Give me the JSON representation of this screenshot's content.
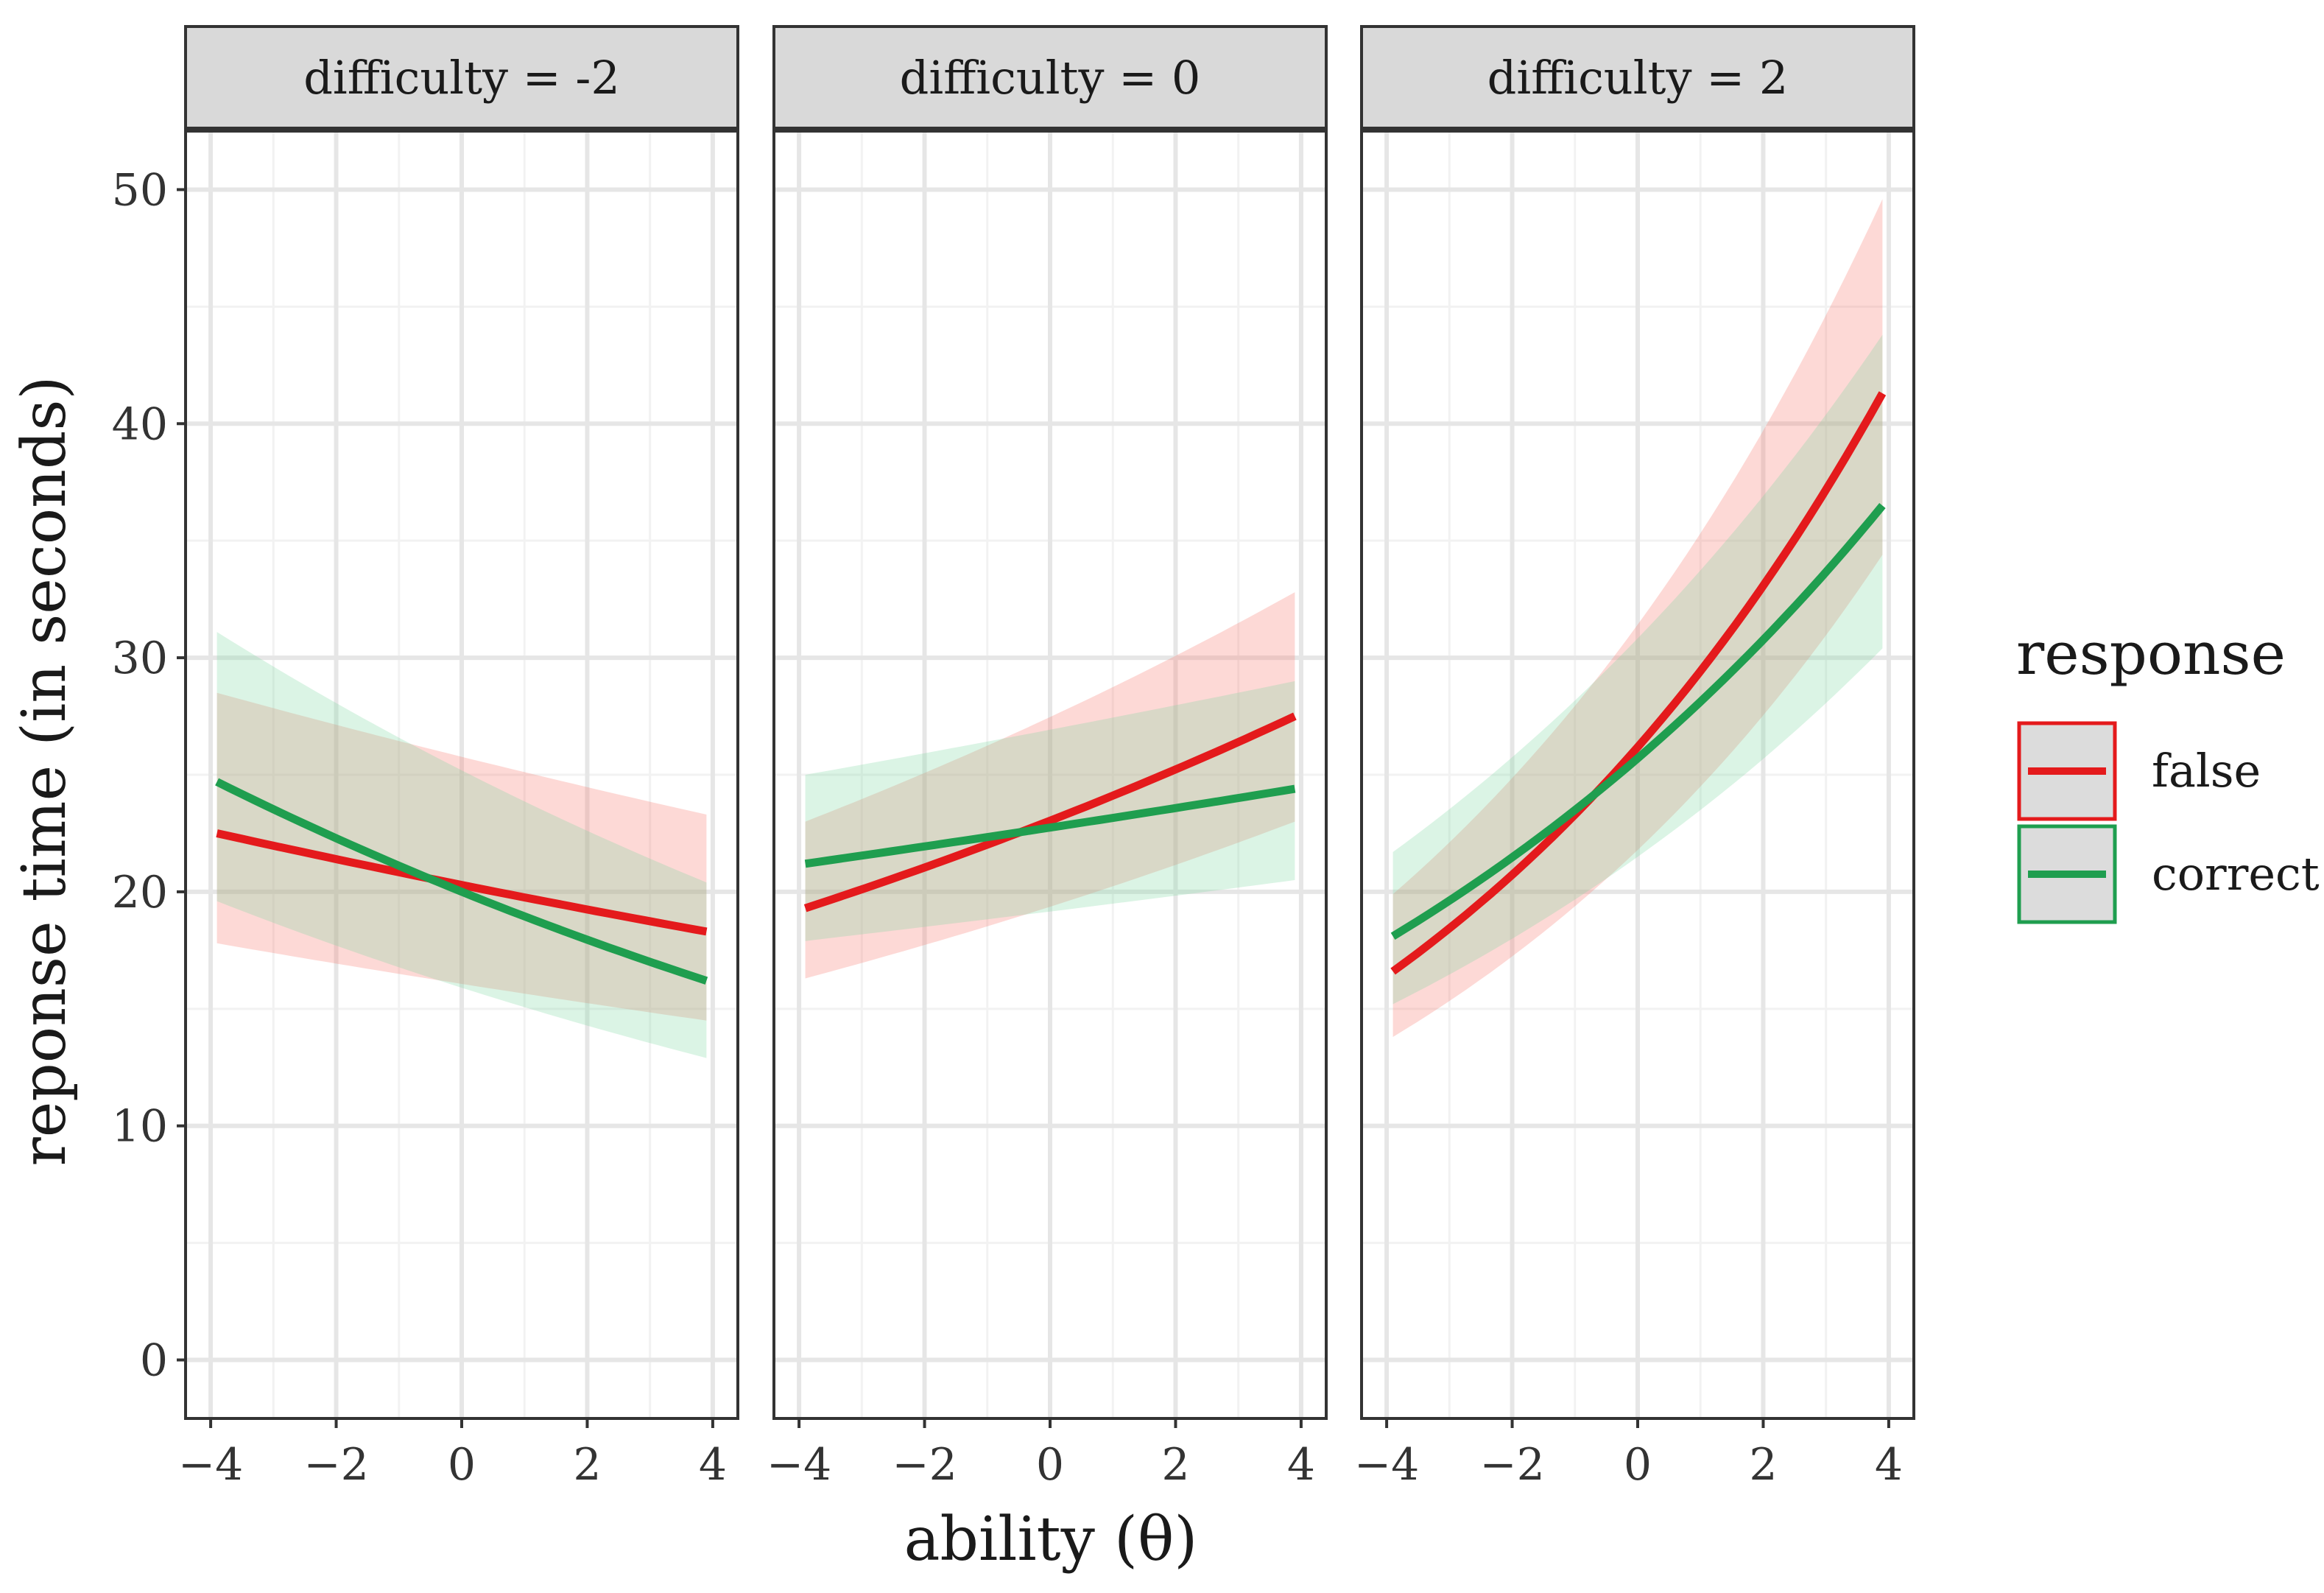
{
  "chart_data": {
    "type": "line",
    "facet_label": "difficulty",
    "xlabel": "ability (θ)",
    "ylabel": "reponse time (in seconds)",
    "xlim": [
      -4.4,
      4.4
    ],
    "ylim": [
      -2.5,
      52.5
    ],
    "x_ticks": [
      -4,
      -2,
      0,
      2,
      4
    ],
    "x_tick_labels": [
      "−4",
      "−2",
      "0",
      "2",
      "4"
    ],
    "y_ticks": [
      0,
      10,
      20,
      30,
      40,
      50
    ],
    "y_tick_labels": [
      "0",
      "10",
      "20",
      "30",
      "40",
      "50"
    ],
    "legend": {
      "title": "response",
      "entries": [
        {
          "label": "false",
          "color": "#e41a1c",
          "fill": "#f8766d"
        },
        {
          "label": "correct",
          "color": "#1f9e4f",
          "fill": "#7fd6a0"
        }
      ]
    },
    "panels": [
      {
        "strip": "difficulty = -2",
        "series": [
          {
            "name": "false",
            "x": [
              -3.9,
              3.9
            ],
            "y": [
              22.5,
              18.3
            ],
            "lower": [
              17.8,
              14.5
            ],
            "upper": [
              28.5,
              23.3
            ]
          },
          {
            "name": "correct",
            "x": [
              -3.9,
              3.9
            ],
            "y": [
              24.7,
              16.2
            ],
            "lower": [
              19.6,
              12.9
            ],
            "upper": [
              31.1,
              20.4
            ]
          }
        ]
      },
      {
        "strip": "difficulty = 0",
        "series": [
          {
            "name": "false",
            "x": [
              -3.9,
              3.9
            ],
            "y": [
              19.3,
              27.5
            ],
            "lower": [
              16.3,
              23.0
            ],
            "upper": [
              23.0,
              32.8
            ]
          },
          {
            "name": "correct",
            "x": [
              -3.9,
              3.9
            ],
            "y": [
              21.2,
              24.4
            ],
            "lower": [
              17.9,
              20.5
            ],
            "upper": [
              25.0,
              29.0
            ]
          }
        ]
      },
      {
        "strip": "difficulty = 2",
        "series": [
          {
            "name": "false",
            "x": [
              -3.9,
              3.9
            ],
            "y": [
              16.6,
              41.3
            ],
            "lower": [
              13.8,
              34.4
            ],
            "upper": [
              19.9,
              49.6
            ]
          },
          {
            "name": "correct",
            "x": [
              -3.9,
              3.9
            ],
            "y": [
              18.1,
              36.5
            ],
            "lower": [
              15.2,
              30.4
            ],
            "upper": [
              21.7,
              43.8
            ]
          }
        ]
      }
    ]
  }
}
